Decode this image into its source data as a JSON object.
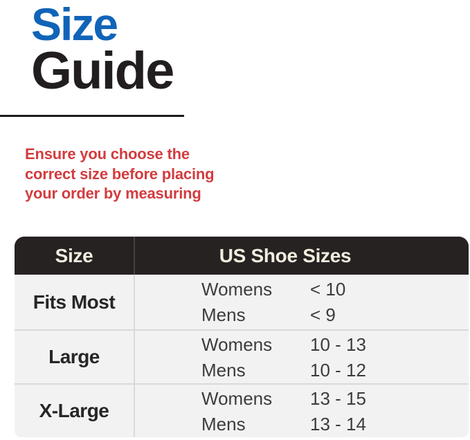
{
  "title": {
    "line1": "Size",
    "line2": "Guide"
  },
  "notice": {
    "lines": [
      "Ensure you choose the",
      "correct size before placing",
      "your order by measuring"
    ]
  },
  "table": {
    "header": {
      "col1": "Size",
      "col2": "US Shoe Sizes"
    },
    "rows": [
      {
        "size": "Fits Most",
        "entries": [
          {
            "label": "Womens",
            "value": "< 10"
          },
          {
            "label": "Mens",
            "value": "< 9"
          }
        ]
      },
      {
        "size": "Large",
        "entries": [
          {
            "label": "Womens",
            "value": "10 - 13"
          },
          {
            "label": "Mens",
            "value": "10 - 12"
          }
        ]
      },
      {
        "size": "X-Large",
        "entries": [
          {
            "label": "Womens",
            "value": "13 - 15"
          },
          {
            "label": "Mens",
            "value": "13 - 14"
          }
        ]
      }
    ]
  },
  "colors": {
    "accent_blue": "#1064B8",
    "title_dark": "#221E1F",
    "notice_red": "#D23C3F",
    "table_header_bg": "#272222",
    "table_header_text": "#F2EDDF",
    "table_row_bg": "#F2F2F2"
  }
}
